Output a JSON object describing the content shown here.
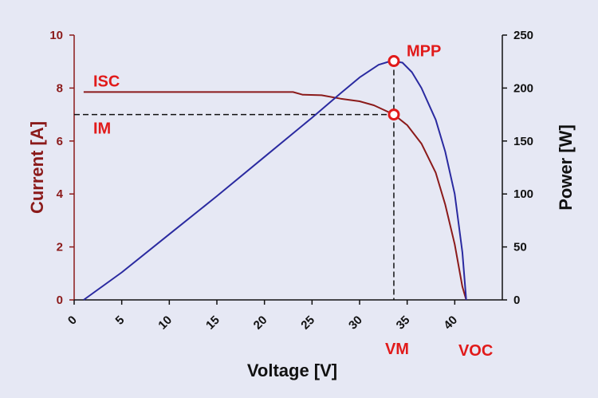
{
  "chart_data": {
    "type": "line",
    "xlabel": "Voltage [V]",
    "ylabel_left": "Current [A]",
    "ylabel_right": "Power [W]",
    "xlim": [
      0,
      45
    ],
    "xticks": [
      0,
      5,
      10,
      15,
      20,
      25,
      30,
      35,
      40
    ],
    "ylim_left": [
      0,
      10
    ],
    "yticks_left": [
      0,
      2,
      4,
      6,
      8,
      10
    ],
    "ylim_right": [
      0,
      250
    ],
    "yticks_right": [
      0,
      50,
      100,
      150,
      200,
      250
    ],
    "grid": false,
    "colors": {
      "current": "#8b1a1a",
      "power": "#2a2aa0",
      "annotation": "#e11a1a"
    },
    "series": [
      {
        "axis": "left",
        "points": [
          [
            1,
            7.85
          ],
          [
            5,
            7.85
          ],
          [
            10,
            7.85
          ],
          [
            15,
            7.85
          ],
          [
            20,
            7.85
          ],
          [
            23,
            7.85
          ],
          [
            24,
            7.75
          ],
          [
            26,
            7.73
          ],
          [
            28,
            7.6
          ],
          [
            30,
            7.5
          ],
          [
            31.5,
            7.35
          ],
          [
            33.6,
            7.0
          ],
          [
            35,
            6.6
          ],
          [
            36.5,
            5.9
          ],
          [
            38,
            4.8
          ],
          [
            39,
            3.6
          ],
          [
            40,
            2.1
          ],
          [
            40.8,
            0.5
          ],
          [
            41.2,
            0
          ]
        ]
      },
      {
        "axis": "right",
        "points": [
          [
            1,
            0
          ],
          [
            5,
            26
          ],
          [
            10,
            62
          ],
          [
            15,
            98
          ],
          [
            20,
            135
          ],
          [
            25,
            172
          ],
          [
            28,
            195
          ],
          [
            30,
            210
          ],
          [
            32,
            222
          ],
          [
            33.3,
            225.5
          ],
          [
            34.5,
            224
          ],
          [
            35.5,
            215
          ],
          [
            36.5,
            200
          ],
          [
            38,
            170
          ],
          [
            39,
            140
          ],
          [
            40,
            100
          ],
          [
            40.8,
            45
          ],
          [
            41.2,
            0
          ]
        ]
      }
    ],
    "annotations": [
      {
        "id": "mpp",
        "label": "MPP",
        "x": 33.6,
        "y": 225.5,
        "axis": "right"
      },
      {
        "id": "im",
        "label": "IM",
        "x": 33.6,
        "y": 7.0,
        "axis": "left"
      },
      {
        "id": "isc",
        "label": "ISC",
        "value": 7.85,
        "axis": "left"
      },
      {
        "id": "vm",
        "label": "VM",
        "value": 33.6
      },
      {
        "id": "voc",
        "label": "VOC",
        "value": 41.2
      }
    ]
  }
}
